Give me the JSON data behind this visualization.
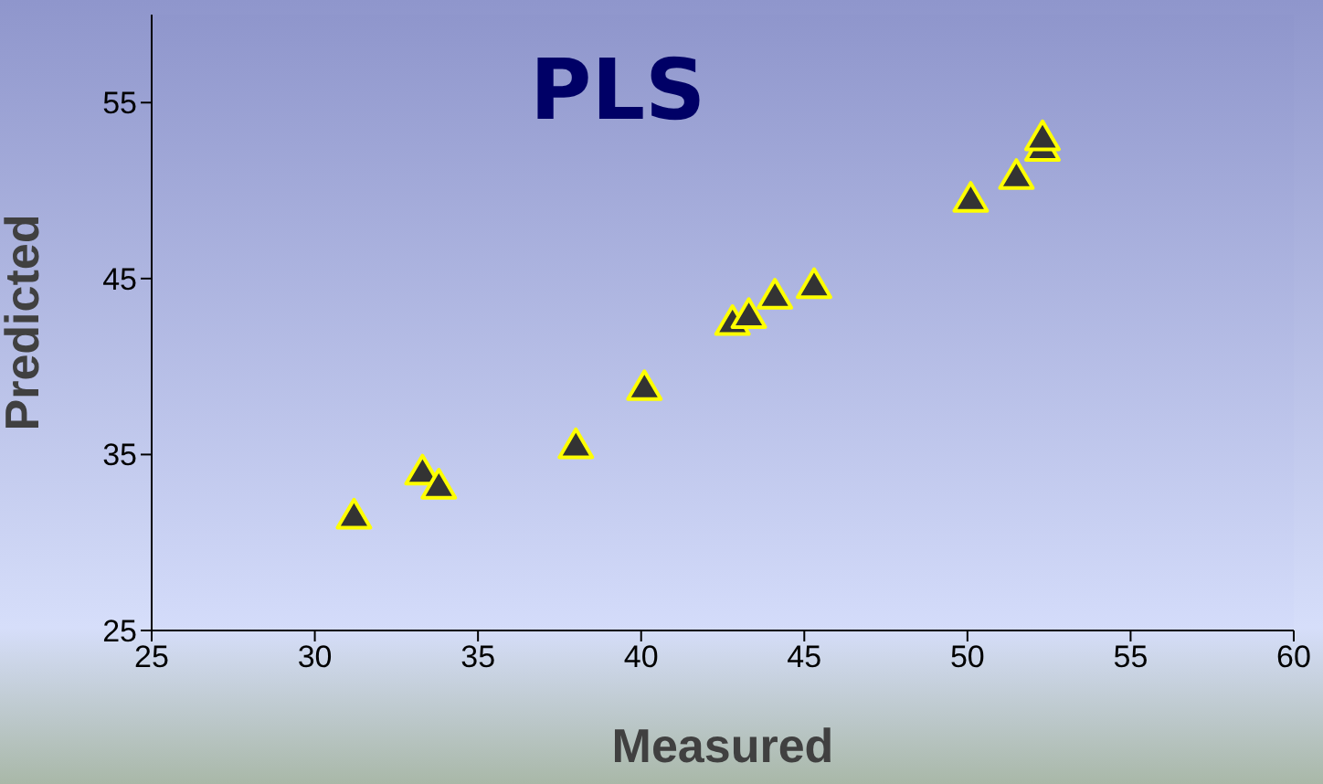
{
  "chart_data": {
    "type": "scatter",
    "title": "PLS",
    "xlabel": "Measured",
    "ylabel": "Predicted",
    "x": [
      31.2,
      33.3,
      33.8,
      38.0,
      40.1,
      42.8,
      43.3,
      44.1,
      45.3,
      50.1,
      51.5,
      52.3,
      52.3
    ],
    "series": [
      {
        "color": "#333333",
        "values": [
          31.5,
          34.0,
          33.2,
          35.5,
          38.8,
          42.5,
          42.9,
          44.0,
          44.6,
          49.5,
          50.8,
          52.4,
          53.0
        ]
      }
    ],
    "xlim": [
      25,
      60
    ],
    "xticks": [
      25,
      30,
      35,
      40,
      45,
      50,
      55,
      60
    ],
    "ylim": [
      25,
      60
    ],
    "yticks": [
      25,
      35,
      45,
      55
    ],
    "grid": false,
    "legend": false,
    "marker": "triangle"
  }
}
